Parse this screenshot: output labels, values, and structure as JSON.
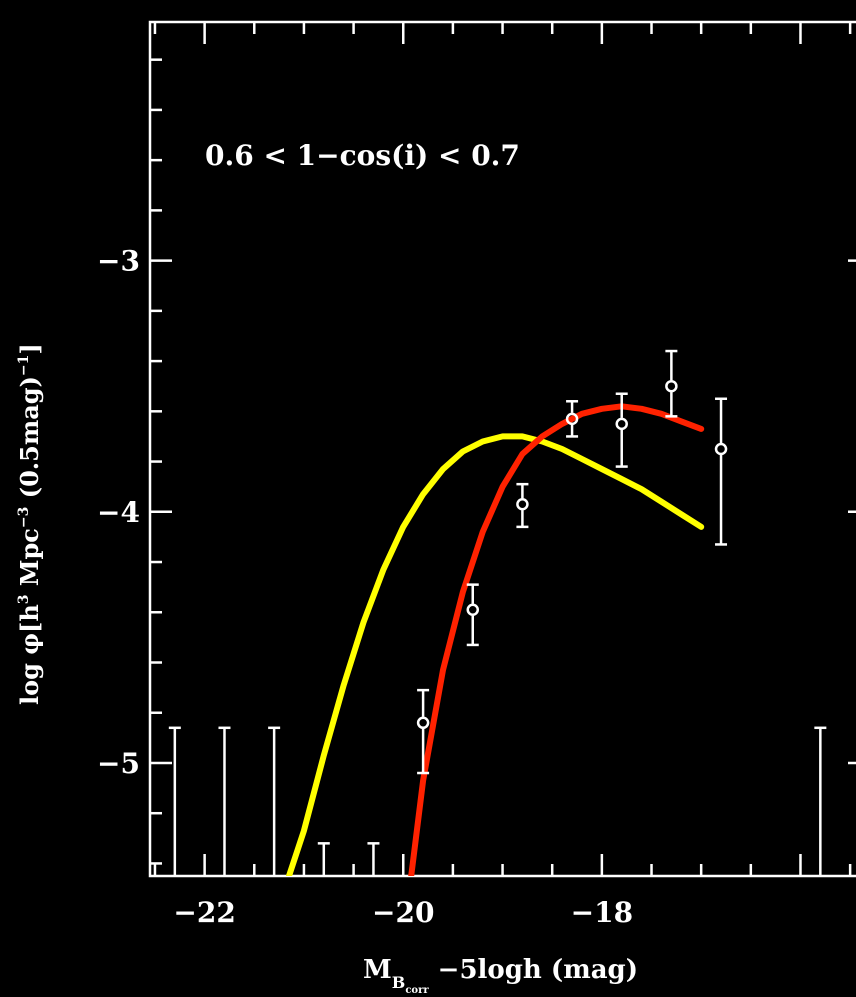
{
  "chart_data": {
    "type": "line",
    "annotation": "0.6 < 1−cos(i) < 0.7",
    "xlabel": {
      "main": "M",
      "sub": "B",
      "subsub": "corr",
      "rest": " −5logh (mag)"
    },
    "ylabel": {
      "p1": "log ",
      "phi": "φ",
      "p2": "[h",
      "sup1": "3",
      "p3": " Mpc",
      "sup2": "−3",
      "p4": " (0.5mag)",
      "sup3": "−1",
      "p5": "]"
    },
    "xlim": [
      -22.55,
      -15.3
    ],
    "ylim": [
      -5.45,
      -2.05
    ],
    "x_ticks": [
      {
        "value": -22,
        "label": "−22"
      },
      {
        "value": -20,
        "label": "−20"
      },
      {
        "value": -18,
        "label": "−18"
      }
    ],
    "y_ticks": [
      {
        "value": -3,
        "label": "−3"
      },
      {
        "value": -4,
        "label": "−4"
      },
      {
        "value": -5,
        "label": "−5"
      }
    ],
    "colors": {
      "background": "#000000",
      "axes": "#ffffff",
      "yellow_curve": "#ffff00",
      "red_curve": "#ff2200",
      "points": "#ffffff"
    },
    "series": [
      {
        "color": "#ffff00",
        "x": [
          -21.15,
          -21.0,
          -20.8,
          -20.6,
          -20.4,
          -20.2,
          -20.0,
          -19.8,
          -19.6,
          -19.4,
          -19.2,
          -19.0,
          -18.8,
          -18.6,
          -18.4,
          -18.2,
          -18.0,
          -17.8,
          -17.6,
          -17.4,
          -17.2,
          -17.0
        ],
        "y": [
          -5.45,
          -5.27,
          -4.97,
          -4.69,
          -4.44,
          -4.23,
          -4.06,
          -3.93,
          -3.83,
          -3.76,
          -3.72,
          -3.7,
          -3.7,
          -3.72,
          -3.75,
          -3.79,
          -3.83,
          -3.87,
          -3.91,
          -3.96,
          -4.01,
          -4.06
        ]
      },
      {
        "color": "#ff2200",
        "x": [
          -19.92,
          -19.8,
          -19.6,
          -19.4,
          -19.2,
          -19.0,
          -18.8,
          -18.6,
          -18.4,
          -18.2,
          -18.0,
          -17.8,
          -17.6,
          -17.4,
          -17.2,
          -17.0
        ],
        "y": [
          -5.45,
          -5.07,
          -4.63,
          -4.32,
          -4.08,
          -3.9,
          -3.77,
          -3.7,
          -3.65,
          -3.61,
          -3.59,
          -3.58,
          -3.59,
          -3.61,
          -3.64,
          -3.67
        ]
      }
    ],
    "points": [
      {
        "x": -19.8,
        "y": -4.84,
        "yerr_low": 0.2,
        "yerr_high": 0.13
      },
      {
        "x": -19.3,
        "y": -4.39,
        "yerr_low": 0.14,
        "yerr_high": 0.1
      },
      {
        "x": -18.8,
        "y": -3.97,
        "yerr_low": 0.09,
        "yerr_high": 0.08
      },
      {
        "x": -18.3,
        "y": -3.63,
        "yerr_low": 0.07,
        "yerr_high": 0.07
      },
      {
        "x": -17.8,
        "y": -3.65,
        "yerr_low": 0.17,
        "yerr_high": 0.12
      },
      {
        "x": -17.3,
        "y": -3.5,
        "yerr_low": 0.12,
        "yerr_high": 0.14
      },
      {
        "x": -16.8,
        "y": -3.75,
        "yerr_low": 0.38,
        "yerr_high": 0.2
      }
    ],
    "upper_limits": [
      {
        "x": -22.3,
        "y_top": -4.86
      },
      {
        "x": -21.8,
        "y_top": -4.86
      },
      {
        "x": -21.3,
        "y_top": -4.86
      },
      {
        "x": -20.8,
        "y_top": -5.32
      },
      {
        "x": -20.3,
        "y_top": -5.32
      },
      {
        "x": -15.8,
        "y_top": -4.86
      }
    ]
  }
}
